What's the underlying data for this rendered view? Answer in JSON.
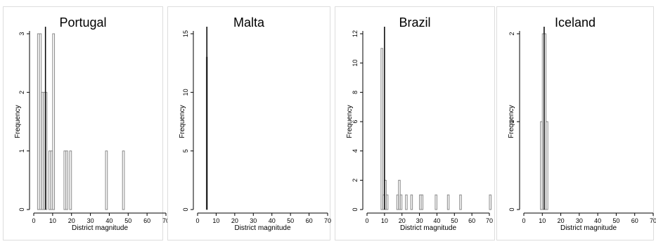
{
  "chart_data": [
    {
      "type": "histogram",
      "title": "Portugal",
      "xlabel": "District magnitude",
      "ylabel": "Frequency",
      "xlim": [
        0,
        70
      ],
      "ylim": [
        0,
        3
      ],
      "xticks": [
        0,
        10,
        20,
        30,
        40,
        50,
        60,
        70
      ],
      "yticks": [
        0,
        1,
        2,
        3
      ],
      "reference_line_x": 6.2,
      "bins": [
        {
          "x0": 2.0,
          "x1": 3.0,
          "count": 3
        },
        {
          "x0": 3.0,
          "x1": 4.0,
          "count": 3
        },
        {
          "x0": 4.0,
          "x1": 5.0,
          "count": 2
        },
        {
          "x0": 5.0,
          "x1": 6.0,
          "count": 2
        },
        {
          "x0": 6.0,
          "x1": 7.0,
          "count": 2
        },
        {
          "x0": 8.0,
          "x1": 9.0,
          "count": 1
        },
        {
          "x0": 9.0,
          "x1": 10.0,
          "count": 1
        },
        {
          "x0": 10.0,
          "x1": 11.0,
          "count": 3
        },
        {
          "x0": 16.0,
          "x1": 17.0,
          "count": 1
        },
        {
          "x0": 17.0,
          "x1": 18.0,
          "count": 1
        },
        {
          "x0": 19.0,
          "x1": 20.0,
          "count": 1
        },
        {
          "x0": 38.0,
          "x1": 39.0,
          "count": 1
        },
        {
          "x0": 47.0,
          "x1": 48.0,
          "count": 1
        }
      ]
    },
    {
      "type": "histogram",
      "title": "Malta",
      "xlabel": "District magnitude",
      "ylabel": "Frequency",
      "xlim": [
        0,
        70
      ],
      "ylim": [
        0,
        15
      ],
      "xticks": [
        0,
        10,
        20,
        30,
        40,
        50,
        60,
        70
      ],
      "yticks": [
        0,
        5,
        10,
        15
      ],
      "reference_line_x": 5.0,
      "bins": [
        {
          "x0": 4.7,
          "x1": 5.3,
          "count": 13
        }
      ]
    },
    {
      "type": "histogram",
      "title": "Brazil",
      "xlabel": "District magnitude",
      "ylabel": "Frequency",
      "xlim": [
        0,
        70
      ],
      "ylim": [
        0,
        12
      ],
      "xticks": [
        0,
        10,
        20,
        30,
        40,
        50,
        60,
        70
      ],
      "yticks": [
        0,
        2,
        4,
        6,
        8,
        10,
        12
      ],
      "reference_line_x": 10.0,
      "bins": [
        {
          "x0": 8.0,
          "x1": 9.0,
          "count": 11
        },
        {
          "x0": 9.0,
          "x1": 10.0,
          "count": 1
        },
        {
          "x0": 10.0,
          "x1": 11.0,
          "count": 2
        },
        {
          "x0": 11.0,
          "x1": 12.0,
          "count": 1
        },
        {
          "x0": 17.0,
          "x1": 18.0,
          "count": 1
        },
        {
          "x0": 18.0,
          "x1": 19.0,
          "count": 2
        },
        {
          "x0": 19.0,
          "x1": 20.0,
          "count": 1
        },
        {
          "x0": 22.0,
          "x1": 23.0,
          "count": 1
        },
        {
          "x0": 25.0,
          "x1": 26.0,
          "count": 1
        },
        {
          "x0": 30.0,
          "x1": 31.0,
          "count": 1
        },
        {
          "x0": 31.0,
          "x1": 32.0,
          "count": 1
        },
        {
          "x0": 39.0,
          "x1": 40.0,
          "count": 1
        },
        {
          "x0": 46.0,
          "x1": 47.0,
          "count": 1
        },
        {
          "x0": 53.0,
          "x1": 54.0,
          "count": 1
        },
        {
          "x0": 70.0,
          "x1": 71.0,
          "count": 1
        }
      ]
    },
    {
      "type": "histogram",
      "title": "Iceland",
      "xlabel": "District magnitude",
      "ylabel": "Frequency",
      "xlim": [
        0,
        70
      ],
      "ylim": [
        0,
        2
      ],
      "xticks": [
        0,
        10,
        20,
        30,
        40,
        50,
        60,
        70
      ],
      "yticks": [
        0,
        1,
        2
      ],
      "reference_line_x": 11.0,
      "bins": [
        {
          "x0": 9.0,
          "x1": 10.0,
          "count": 1
        },
        {
          "x0": 10.0,
          "x1": 11.0,
          "count": 2
        },
        {
          "x0": 11.0,
          "x1": 12.0,
          "count": 2
        },
        {
          "x0": 12.0,
          "x1": 13.0,
          "count": 1
        }
      ]
    }
  ]
}
